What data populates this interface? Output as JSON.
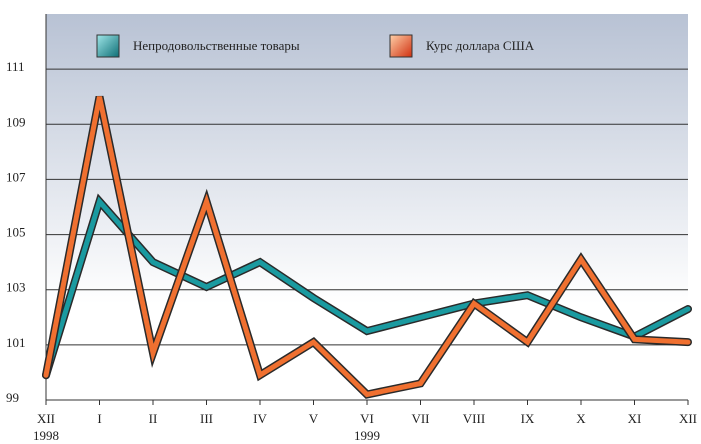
{
  "chart_data": {
    "type": "line",
    "categories": [
      "XII",
      "I",
      "II",
      "III",
      "IV",
      "V",
      "VI",
      "VII",
      "VIII",
      "IX",
      "X",
      "XI",
      "XII"
    ],
    "years": [
      "1998",
      null,
      null,
      null,
      null,
      null,
      "1999",
      null,
      null,
      null,
      null,
      null,
      null
    ],
    "series": [
      {
        "name": "Непродовольственные товары",
        "color": "#1a9aa0",
        "values": [
          99.9,
          106.2,
          104.0,
          103.1,
          104.0,
          102.7,
          101.5,
          102.0,
          102.5,
          102.8,
          102.0,
          101.3,
          102.3
        ]
      },
      {
        "name": "Курс доллара США",
        "color": "#f07030",
        "values": [
          99.9,
          110.0,
          100.7,
          106.2,
          99.9,
          101.1,
          99.2,
          99.6,
          102.5,
          101.1,
          104.1,
          101.2,
          101.1
        ]
      }
    ],
    "ylim": [
      99,
      113
    ],
    "yticks": [
      99,
      101,
      103,
      105,
      107,
      109,
      111
    ],
    "grid": true,
    "legend": "top"
  }
}
